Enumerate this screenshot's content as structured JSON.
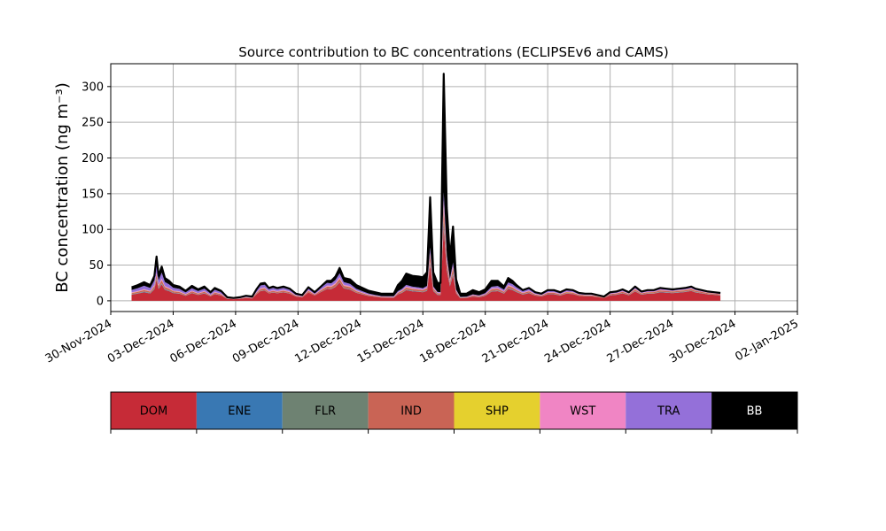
{
  "chart_data": {
    "type": "area",
    "title": "Source contribution to BC concentrations (ECLIPSEv6 and CAMS)",
    "ylabel": "BC concentration (ng m⁻³)",
    "xlabel": "",
    "x_start": "2024-12-01",
    "x_end": "2024-12-31",
    "xlim": [
      "2024-11-30",
      "2025-01-02"
    ],
    "ylim": [
      -15,
      332
    ],
    "yticks": [
      0,
      50,
      100,
      150,
      200,
      250,
      300
    ],
    "xticks": [
      "30-Nov-2024",
      "03-Dec-2024",
      "06-Dec-2024",
      "09-Dec-2024",
      "12-Dec-2024",
      "15-Dec-2024",
      "18-Dec-2024",
      "21-Dec-2024",
      "24-Dec-2024",
      "27-Dec-2024",
      "30-Dec-2024",
      "02-Jan-2025"
    ],
    "grid": true,
    "stacked": true,
    "total": [
      [
        1,
        19
      ],
      [
        1.3,
        22
      ],
      [
        1.6,
        26
      ],
      [
        1.9,
        22
      ],
      [
        2.1,
        35
      ],
      [
        2.2,
        62
      ],
      [
        2.3,
        35
      ],
      [
        2.45,
        48
      ],
      [
        2.6,
        32
      ],
      [
        2.8,
        28
      ],
      [
        3.0,
        22
      ],
      [
        3.3,
        20
      ],
      [
        3.6,
        14
      ],
      [
        3.9,
        21
      ],
      [
        4.2,
        16
      ],
      [
        4.5,
        20
      ],
      [
        4.8,
        12
      ],
      [
        5.0,
        18
      ],
      [
        5.3,
        14
      ],
      [
        5.6,
        5
      ],
      [
        5.9,
        4
      ],
      [
        6.2,
        5
      ],
      [
        6.5,
        7
      ],
      [
        6.8,
        6
      ],
      [
        7.0,
        16
      ],
      [
        7.2,
        24
      ],
      [
        7.4,
        25
      ],
      [
        7.6,
        18
      ],
      [
        7.8,
        20
      ],
      [
        8.0,
        18
      ],
      [
        8.3,
        20
      ],
      [
        8.6,
        17
      ],
      [
        8.9,
        10
      ],
      [
        9.2,
        8
      ],
      [
        9.5,
        19
      ],
      [
        9.8,
        12
      ],
      [
        10.1,
        20
      ],
      [
        10.4,
        28
      ],
      [
        10.6,
        28
      ],
      [
        10.8,
        34
      ],
      [
        11.0,
        46
      ],
      [
        11.2,
        32
      ],
      [
        11.5,
        30
      ],
      [
        11.8,
        22
      ],
      [
        12.1,
        18
      ],
      [
        12.4,
        14
      ],
      [
        12.7,
        12
      ],
      [
        13.0,
        10
      ],
      [
        13.3,
        10
      ],
      [
        13.6,
        10
      ],
      [
        13.8,
        22
      ],
      [
        14.0,
        28
      ],
      [
        14.2,
        38
      ],
      [
        14.5,
        35
      ],
      [
        14.8,
        34
      ],
      [
        15.0,
        33
      ],
      [
        15.2,
        40
      ],
      [
        15.35,
        145
      ],
      [
        15.5,
        40
      ],
      [
        15.7,
        25
      ],
      [
        15.85,
        25
      ],
      [
        16.0,
        318
      ],
      [
        16.15,
        130
      ],
      [
        16.3,
        60
      ],
      [
        16.45,
        104
      ],
      [
        16.6,
        30
      ],
      [
        16.8,
        10
      ],
      [
        17.1,
        10
      ],
      [
        17.4,
        15
      ],
      [
        17.7,
        12
      ],
      [
        18.0,
        16
      ],
      [
        18.3,
        28
      ],
      [
        18.6,
        28
      ],
      [
        18.9,
        20
      ],
      [
        19.1,
        32
      ],
      [
        19.3,
        28
      ],
      [
        19.5,
        22
      ],
      [
        19.8,
        15
      ],
      [
        20.1,
        18
      ],
      [
        20.4,
        12
      ],
      [
        20.7,
        10
      ],
      [
        21.0,
        15
      ],
      [
        21.3,
        15
      ],
      [
        21.6,
        12
      ],
      [
        21.9,
        16
      ],
      [
        22.2,
        15
      ],
      [
        22.5,
        11
      ],
      [
        22.8,
        10
      ],
      [
        23.1,
        10
      ],
      [
        23.4,
        8
      ],
      [
        23.7,
        6
      ],
      [
        24.0,
        12
      ],
      [
        24.3,
        13
      ],
      [
        24.6,
        16
      ],
      [
        24.9,
        12
      ],
      [
        25.2,
        20
      ],
      [
        25.5,
        13
      ],
      [
        25.8,
        15
      ],
      [
        26.1,
        15
      ],
      [
        26.4,
        18
      ],
      [
        26.7,
        17
      ],
      [
        27.0,
        16
      ],
      [
        27.3,
        17
      ],
      [
        27.6,
        18
      ],
      [
        27.9,
        20
      ],
      [
        28.1,
        17
      ],
      [
        28.4,
        15
      ],
      [
        28.7,
        13
      ],
      [
        29.0,
        12
      ],
      [
        29.3,
        11
      ]
    ],
    "shares": [
      {
        "name": "DOM",
        "values": [
          0.45,
          0.62,
          0.45,
          0.6,
          0.7
        ]
      },
      {
        "name": "ENE",
        "values": [
          0.02,
          0.01,
          0.02,
          0.02,
          0.02
        ]
      },
      {
        "name": "FLR",
        "values": [
          0.02,
          0.01,
          0.02,
          0.02,
          0.02
        ]
      },
      {
        "name": "IND",
        "values": [
          0.08,
          0.1,
          0.08,
          0.1,
          0.1
        ]
      },
      {
        "name": "SHP",
        "values": [
          0.01,
          0.01,
          0.01,
          0.01,
          0.01
        ]
      },
      {
        "name": "WST",
        "values": [
          0.04,
          0.05,
          0.04,
          0.05,
          0.05
        ]
      },
      {
        "name": "TRA",
        "values": [
          0.18,
          0.14,
          0.05,
          0.14,
          0.09
        ]
      },
      {
        "name": "BB",
        "values": [
          0.2,
          0.06,
          0.73,
          0.06,
          0.01
        ]
      }
    ],
    "share_days": [
      1,
      10,
      16,
      20,
      29.3
    ],
    "legend_placement": "bottom (colorbar)"
  },
  "legend": {
    "items": [
      {
        "label": "DOM",
        "color": "#c62b37",
        "text_color": "#000000"
      },
      {
        "label": "ENE",
        "color": "#3978b3",
        "text_color": "#000000"
      },
      {
        "label": "FLR",
        "color": "#6e8272",
        "text_color": "#000000"
      },
      {
        "label": "IND",
        "color": "#c96455",
        "text_color": "#000000"
      },
      {
        "label": "SHP",
        "color": "#e5d02e",
        "text_color": "#000000"
      },
      {
        "label": "WST",
        "color": "#f085c4",
        "text_color": "#000000"
      },
      {
        "label": "TRA",
        "color": "#9470d9",
        "text_color": "#000000"
      },
      {
        "label": "BB",
        "color": "#000000",
        "text_color": "#ffffff"
      }
    ]
  }
}
